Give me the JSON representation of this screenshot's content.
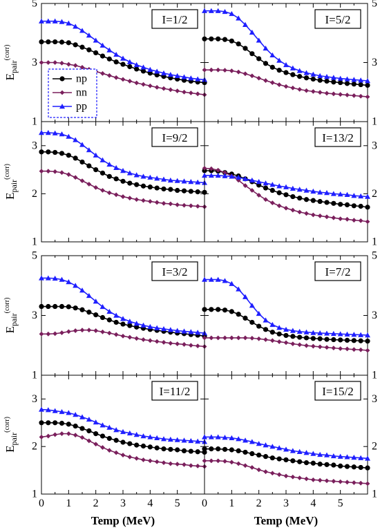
{
  "chart_data": {
    "type": "line",
    "xlabel": "Temp (MeV)",
    "ylabel_main": "E",
    "ylabel_sub": "pair",
    "ylabel_sup": "(corr)",
    "xticks": [
      0,
      1,
      2,
      3,
      4,
      5
    ],
    "xlim": [
      0,
      6
    ],
    "legend": {
      "placement": "upper-left of first panel",
      "entries": [
        "np",
        "nn",
        "pp"
      ]
    },
    "series_style": [
      {
        "name": "np",
        "color": "#000000",
        "marker": "circle"
      },
      {
        "name": "nn",
        "color": "#7a1f5c",
        "marker": "diamond"
      },
      {
        "name": "pp",
        "color": "#1f1fff",
        "marker": "triangle"
      }
    ],
    "x": [
      0,
      0.25,
      0.5,
      0.75,
      1.0,
      1.25,
      1.5,
      1.75,
      2.0,
      2.25,
      2.5,
      2.75,
      3.0,
      3.25,
      3.5,
      3.75,
      4.0,
      4.25,
      4.5,
      4.75,
      5.0,
      5.25,
      5.5,
      5.75,
      6.0
    ],
    "panels": [
      {
        "label": "I=1/2",
        "ylim": [
          1,
          5
        ],
        "yticks": [
          1,
          3,
          5
        ],
        "ytick_side": "left",
        "series": [
          {
            "name": "np",
            "values": [
              3.7,
              3.7,
              3.7,
              3.69,
              3.67,
              3.6,
              3.52,
              3.43,
              3.33,
              3.22,
              3.12,
              3.02,
              2.94,
              2.86,
              2.78,
              2.71,
              2.64,
              2.58,
              2.53,
              2.48,
              2.44,
              2.4,
              2.37,
              2.34,
              2.32
            ]
          },
          {
            "name": "nn",
            "values": [
              3.0,
              3.0,
              3.0,
              2.98,
              2.94,
              2.9,
              2.84,
              2.77,
              2.7,
              2.63,
              2.56,
              2.49,
              2.43,
              2.37,
              2.31,
              2.26,
              2.21,
              2.16,
              2.12,
              2.08,
              2.04,
              2.0,
              1.97,
              1.94,
              1.91
            ]
          },
          {
            "name": "pp",
            "values": [
              4.4,
              4.4,
              4.4,
              4.38,
              4.33,
              4.22,
              4.08,
              3.92,
              3.75,
              3.58,
              3.42,
              3.27,
              3.14,
              3.02,
              2.92,
              2.84,
              2.76,
              2.7,
              2.64,
              2.59,
              2.55,
              2.51,
              2.47,
              2.44,
              2.42
            ]
          }
        ]
      },
      {
        "label": "I=5/2",
        "ylim": [
          1,
          5
        ],
        "yticks": [
          1,
          3,
          5
        ],
        "ytick_side": "right",
        "series": [
          {
            "name": "np",
            "values": [
              3.8,
              3.8,
              3.8,
              3.78,
              3.73,
              3.63,
              3.48,
              3.3,
              3.13,
              2.97,
              2.84,
              2.74,
              2.66,
              2.59,
              2.53,
              2.48,
              2.44,
              2.4,
              2.37,
              2.34,
              2.32,
              2.29,
              2.27,
              2.25,
              2.23
            ]
          },
          {
            "name": "nn",
            "values": [
              2.75,
              2.75,
              2.75,
              2.74,
              2.72,
              2.68,
              2.62,
              2.55,
              2.47,
              2.39,
              2.32,
              2.25,
              2.19,
              2.14,
              2.09,
              2.05,
              2.02,
              1.99,
              1.96,
              1.94,
              1.92,
              1.9,
              1.88,
              1.86,
              1.84
            ]
          },
          {
            "name": "pp",
            "values": [
              4.75,
              4.75,
              4.75,
              4.72,
              4.65,
              4.5,
              4.28,
              4.02,
              3.75,
              3.48,
              3.25,
              3.07,
              2.92,
              2.81,
              2.72,
              2.65,
              2.6,
              2.55,
              2.52,
              2.49,
              2.46,
              2.44,
              2.42,
              2.4,
              2.38
            ]
          }
        ]
      },
      {
        "label": "I=9/2",
        "ylim": [
          1,
          3.5
        ],
        "yticks": [
          1,
          2,
          3
        ],
        "ytick_side": "left",
        "series": [
          {
            "name": "np",
            "values": [
              2.87,
              2.87,
              2.86,
              2.84,
              2.8,
              2.74,
              2.66,
              2.58,
              2.5,
              2.43,
              2.36,
              2.31,
              2.26,
              2.22,
              2.19,
              2.16,
              2.14,
              2.12,
              2.1,
              2.09,
              2.07,
              2.06,
              2.05,
              2.04,
              2.03
            ]
          },
          {
            "name": "nn",
            "values": [
              2.47,
              2.47,
              2.46,
              2.44,
              2.4,
              2.34,
              2.27,
              2.2,
              2.13,
              2.07,
              2.02,
              1.98,
              1.94,
              1.91,
              1.88,
              1.86,
              1.84,
              1.82,
              1.8,
              1.79,
              1.77,
              1.76,
              1.75,
              1.74,
              1.73
            ]
          },
          {
            "name": "pp",
            "values": [
              3.27,
              3.27,
              3.26,
              3.24,
              3.19,
              3.12,
              3.02,
              2.91,
              2.8,
              2.7,
              2.61,
              2.54,
              2.48,
              2.43,
              2.39,
              2.36,
              2.34,
              2.32,
              2.3,
              2.28,
              2.27,
              2.26,
              2.25,
              2.24,
              2.23
            ]
          }
        ]
      },
      {
        "label": "I=13/2",
        "ylim": [
          1,
          3.5
        ],
        "yticks": [
          1,
          2,
          3
        ],
        "ytick_side": "right",
        "series": [
          {
            "name": "np",
            "values": [
              2.48,
              2.48,
              2.47,
              2.44,
              2.41,
              2.37,
              2.31,
              2.25,
              2.18,
              2.12,
              2.07,
              2.02,
              1.98,
              1.94,
              1.91,
              1.88,
              1.86,
              1.84,
              1.82,
              1.8,
              1.78,
              1.77,
              1.75,
              1.74,
              1.72
            ]
          },
          {
            "name": "nn",
            "values": [
              2.53,
              2.52,
              2.49,
              2.44,
              2.37,
              2.28,
              2.17,
              2.07,
              1.97,
              1.88,
              1.81,
              1.75,
              1.7,
              1.66,
              1.62,
              1.59,
              1.56,
              1.54,
              1.52,
              1.5,
              1.48,
              1.47,
              1.45,
              1.44,
              1.42
            ]
          },
          {
            "name": "pp",
            "values": [
              2.38,
              2.38,
              2.38,
              2.37,
              2.36,
              2.34,
              2.31,
              2.28,
              2.25,
              2.22,
              2.19,
              2.16,
              2.14,
              2.11,
              2.09,
              2.07,
              2.05,
              2.03,
              2.02,
              2.0,
              1.99,
              1.98,
              1.96,
              1.95,
              1.94
            ]
          }
        ]
      },
      {
        "label": "I=3/2",
        "ylim": [
          1,
          5
        ],
        "yticks": [
          1,
          3,
          5
        ],
        "ytick_side": "left",
        "series": [
          {
            "name": "np",
            "values": [
              3.3,
              3.3,
              3.3,
              3.3,
              3.29,
              3.25,
              3.19,
              3.11,
              3.02,
              2.93,
              2.85,
              2.77,
              2.71,
              2.66,
              2.61,
              2.57,
              2.53,
              2.5,
              2.47,
              2.44,
              2.41,
              2.39,
              2.36,
              2.34,
              2.31
            ]
          },
          {
            "name": "nn",
            "values": [
              2.38,
              2.38,
              2.39,
              2.42,
              2.46,
              2.49,
              2.51,
              2.51,
              2.49,
              2.45,
              2.41,
              2.36,
              2.31,
              2.27,
              2.23,
              2.19,
              2.16,
              2.13,
              2.1,
              2.07,
              2.05,
              2.03,
              2.0,
              1.98,
              1.96
            ]
          },
          {
            "name": "pp",
            "values": [
              4.25,
              4.25,
              4.24,
              4.2,
              4.12,
              4.0,
              3.84,
              3.66,
              3.47,
              3.29,
              3.13,
              3.0,
              2.89,
              2.8,
              2.73,
              2.67,
              2.62,
              2.58,
              2.55,
              2.52,
              2.49,
              2.47,
              2.45,
              2.43,
              2.41
            ]
          }
        ]
      },
      {
        "label": "I=7/2",
        "ylim": [
          1,
          5
        ],
        "yticks": [
          1,
          3,
          5
        ],
        "ytick_side": "right",
        "series": [
          {
            "name": "np",
            "values": [
              3.2,
              3.2,
              3.2,
              3.18,
              3.13,
              3.04,
              2.91,
              2.77,
              2.64,
              2.53,
              2.44,
              2.38,
              2.33,
              2.3,
              2.27,
              2.25,
              2.23,
              2.22,
              2.2,
              2.19,
              2.18,
              2.17,
              2.16,
              2.15,
              2.14
            ]
          },
          {
            "name": "nn",
            "values": [
              2.25,
              2.25,
              2.25,
              2.25,
              2.25,
              2.25,
              2.25,
              2.24,
              2.22,
              2.19,
              2.16,
              2.12,
              2.09,
              2.05,
              2.02,
              1.99,
              1.97,
              1.95,
              1.93,
              1.91,
              1.89,
              1.88,
              1.86,
              1.85,
              1.83
            ]
          },
          {
            "name": "pp",
            "values": [
              4.2,
              4.2,
              4.2,
              4.16,
              4.06,
              3.88,
              3.62,
              3.33,
              3.06,
              2.84,
              2.69,
              2.59,
              2.53,
              2.49,
              2.46,
              2.44,
              2.42,
              2.41,
              2.4,
              2.39,
              2.38,
              2.37,
              2.36,
              2.35,
              2.34
            ]
          }
        ]
      },
      {
        "label": "I=11/2",
        "ylim": [
          1,
          3.5
        ],
        "yticks": [
          1,
          2,
          3
        ],
        "ytick_side": "left",
        "series": [
          {
            "name": "np",
            "values": [
              2.5,
              2.5,
              2.5,
              2.49,
              2.47,
              2.43,
              2.38,
              2.33,
              2.27,
              2.22,
              2.17,
              2.13,
              2.09,
              2.06,
              2.03,
              2.01,
              1.99,
              1.97,
              1.95,
              1.94,
              1.93,
              1.91,
              1.9,
              1.89,
              1.88
            ]
          },
          {
            "name": "nn",
            "values": [
              2.2,
              2.22,
              2.25,
              2.27,
              2.27,
              2.24,
              2.19,
              2.12,
              2.05,
              1.98,
              1.92,
              1.87,
              1.82,
              1.78,
              1.75,
              1.72,
              1.7,
              1.68,
              1.66,
              1.64,
              1.63,
              1.62,
              1.6,
              1.59,
              1.58
            ]
          },
          {
            "name": "pp",
            "values": [
              2.78,
              2.77,
              2.75,
              2.73,
              2.71,
              2.67,
              2.62,
              2.57,
              2.51,
              2.45,
              2.4,
              2.35,
              2.31,
              2.28,
              2.25,
              2.22,
              2.2,
              2.18,
              2.16,
              2.15,
              2.14,
              2.13,
              2.12,
              2.11,
              2.1
            ]
          }
        ]
      },
      {
        "label": "I=15/2",
        "ylim": [
          1,
          3.5
        ],
        "yticks": [
          1,
          2,
          3
        ],
        "ytick_side": "right",
        "series": [
          {
            "name": "np",
            "values": [
              1.95,
              1.95,
              1.95,
              1.94,
              1.93,
              1.91,
              1.88,
              1.85,
              1.82,
              1.79,
              1.76,
              1.74,
              1.72,
              1.7,
              1.68,
              1.66,
              1.65,
              1.63,
              1.62,
              1.61,
              1.59,
              1.58,
              1.57,
              1.56,
              1.55
            ]
          },
          {
            "name": "nn",
            "values": [
              1.7,
              1.7,
              1.7,
              1.69,
              1.67,
              1.64,
              1.6,
              1.56,
              1.51,
              1.47,
              1.44,
              1.41,
              1.38,
              1.36,
              1.34,
              1.32,
              1.3,
              1.29,
              1.28,
              1.27,
              1.26,
              1.25,
              1.24,
              1.23,
              1.22
            ]
          },
          {
            "name": "pp",
            "values": [
              2.2,
              2.2,
              2.2,
              2.19,
              2.18,
              2.16,
              2.13,
              2.1,
              2.06,
              2.03,
              2.0,
              1.97,
              1.94,
              1.91,
              1.89,
              1.87,
              1.85,
              1.83,
              1.82,
              1.8,
              1.79,
              1.78,
              1.77,
              1.76,
              1.75
            ]
          }
        ]
      }
    ]
  }
}
